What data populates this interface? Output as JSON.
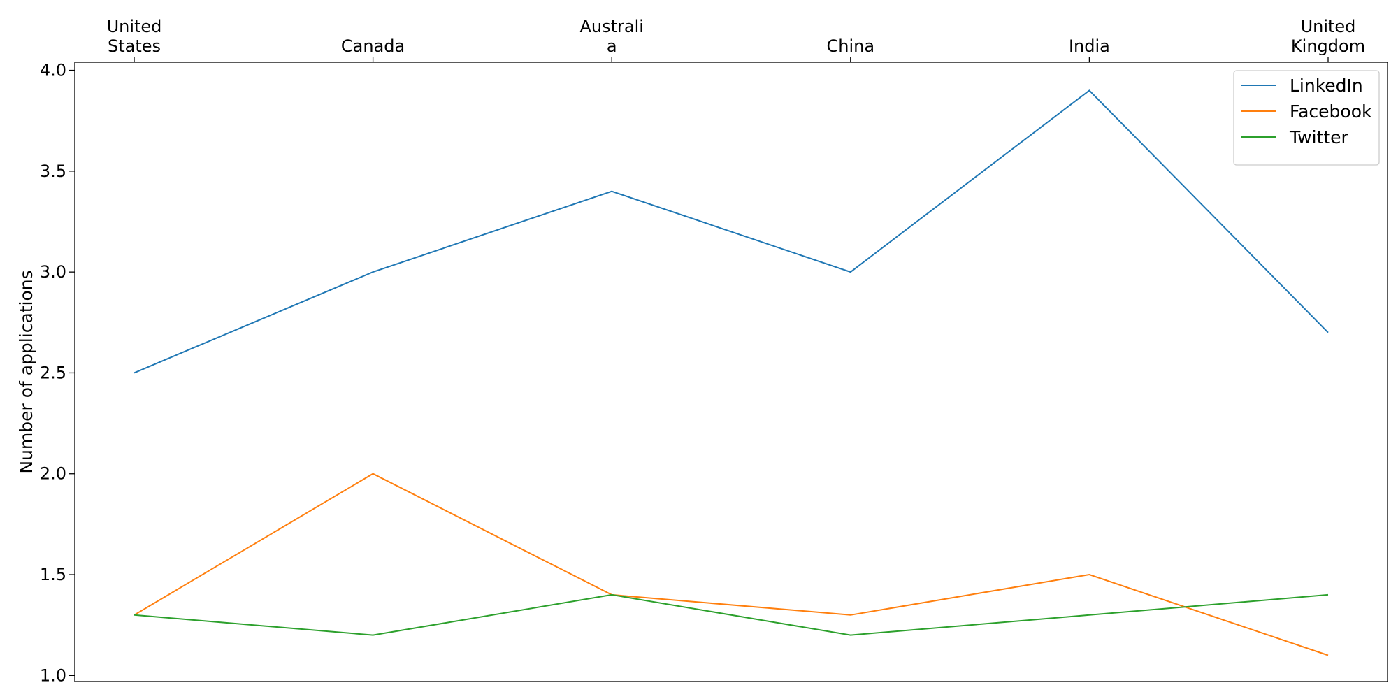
{
  "chart_data": {
    "type": "line",
    "x_axis_position": "top",
    "categories": [
      [
        "United",
        "States"
      ],
      [
        "Canada"
      ],
      [
        "Australi",
        "a"
      ],
      [
        "China"
      ],
      [
        "India"
      ],
      [
        "United",
        "Kingdom"
      ]
    ],
    "ylabel": "Number of applications",
    "ylim": [
      0.97,
      4.04
    ],
    "yticks": [
      1.0,
      1.5,
      2.0,
      2.5,
      3.0,
      3.5,
      4.0
    ],
    "grid": false,
    "legend_position": "top-right",
    "series": [
      {
        "name": "LinkedIn",
        "color": "#1f77b4",
        "values": [
          2.5,
          3.0,
          3.4,
          3.0,
          3.9,
          2.7
        ]
      },
      {
        "name": "Facebook",
        "color": "#ff7f0e",
        "values": [
          1.3,
          2.0,
          1.4,
          1.3,
          1.5,
          1.1
        ]
      },
      {
        "name": "Twitter",
        "color": "#2ca02c",
        "values": [
          1.3,
          1.2,
          1.4,
          1.2,
          1.3,
          1.4
        ]
      }
    ]
  }
}
